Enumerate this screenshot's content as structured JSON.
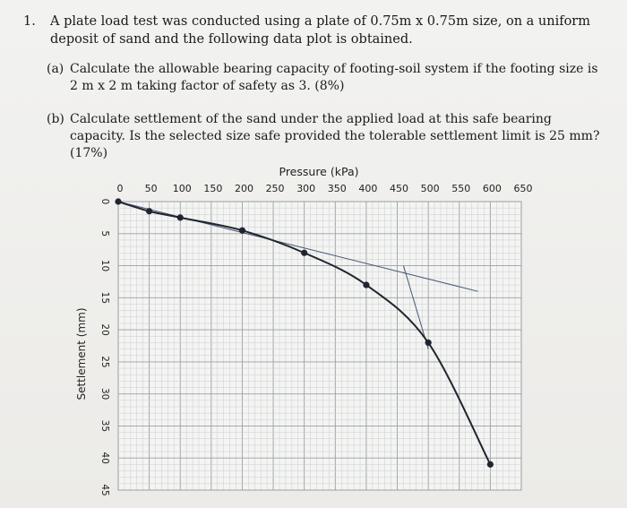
{
  "question": {
    "number": "1.",
    "text": "A plate load test was conducted using a plate of 0.75m x 0.75m size, on a uniform deposit of sand and the following data plot is obtained."
  },
  "parts": [
    {
      "label": "(a)",
      "text": "Calculate the allowable bearing capacity of footing-soil system if the footing size is 2 m x 2 m taking factor of safety as 3. (8%)"
    },
    {
      "label": "(b)",
      "text": "Calculate settlement of the sand under the applied load at this safe bearing capacity. Is the selected size safe provided the tolerable settlement limit is 25 mm? (17%)"
    }
  ],
  "chart_data": {
    "type": "line",
    "title": "",
    "xlabel": "Pressure (kPa)",
    "ylabel": "Settlement (mm)",
    "xlim": [
      0,
      650
    ],
    "ylim": [
      0,
      45
    ],
    "x_ticks": [
      0,
      50,
      100,
      150,
      200,
      250,
      300,
      350,
      400,
      450,
      500,
      550,
      600,
      650
    ],
    "y_ticks": [
      0,
      5,
      10,
      15,
      20,
      25,
      30,
      35,
      40,
      45
    ],
    "y_inverted": true,
    "grid": true,
    "series": [
      {
        "x": [
          0,
          50,
          100,
          200,
          300,
          400,
          500,
          600
        ],
        "y": [
          0,
          1.5,
          2.5,
          4.5,
          8,
          13,
          22,
          41
        ]
      }
    ],
    "tangents": [
      {
        "x": [
          0,
          580
        ],
        "y": [
          0,
          14
        ]
      },
      {
        "x": [
          460,
          500
        ],
        "y": [
          10,
          23
        ]
      }
    ]
  }
}
